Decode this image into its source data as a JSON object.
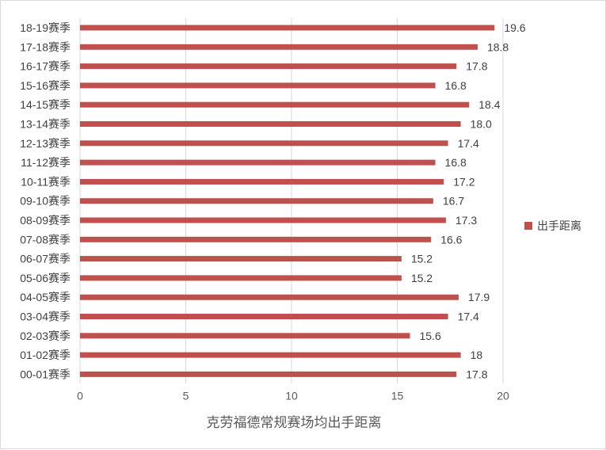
{
  "colors": {
    "bar": "#c0504d",
    "grid": "#d9d9d9",
    "text": "#404040"
  },
  "chart_data": {
    "type": "bar",
    "orientation": "horizontal",
    "categories": [
      "18-19赛季",
      "17-18赛季",
      "16-17赛季",
      "15-16赛季",
      "14-15赛季",
      "13-14赛季",
      "12-13赛季",
      "11-12赛季",
      "10-11赛季",
      "09-10赛季",
      "08-09赛季",
      "07-08赛季",
      "06-07赛季",
      "05-06赛季",
      "04-05赛季",
      "03-04赛季",
      "02-03赛季",
      "01-02赛季",
      "00-01赛季"
    ],
    "values": [
      19.6,
      18.8,
      17.8,
      16.8,
      18.4,
      18.0,
      17.4,
      16.8,
      17.2,
      16.7,
      17.3,
      16.6,
      15.2,
      15.2,
      17.9,
      17.4,
      15.6,
      18,
      17.8
    ],
    "value_labels": [
      "19.6",
      "18.8",
      "17.8",
      "16.8",
      "18.4",
      "18.0",
      "17.4",
      "16.8",
      "17.2",
      "16.7",
      "17.3",
      "16.6",
      "15.2",
      "15.2",
      "17.9",
      "17.4",
      "15.6",
      "18",
      "17.8"
    ],
    "series": [
      {
        "name": "出手距离"
      }
    ],
    "xlabel": "克劳福德常规赛场均出手距离",
    "ylabel": "",
    "xlim": [
      0,
      20
    ],
    "xticks": [
      "0",
      "5",
      "10",
      "15",
      "20"
    ],
    "grid": "vertical",
    "legend": "right"
  }
}
